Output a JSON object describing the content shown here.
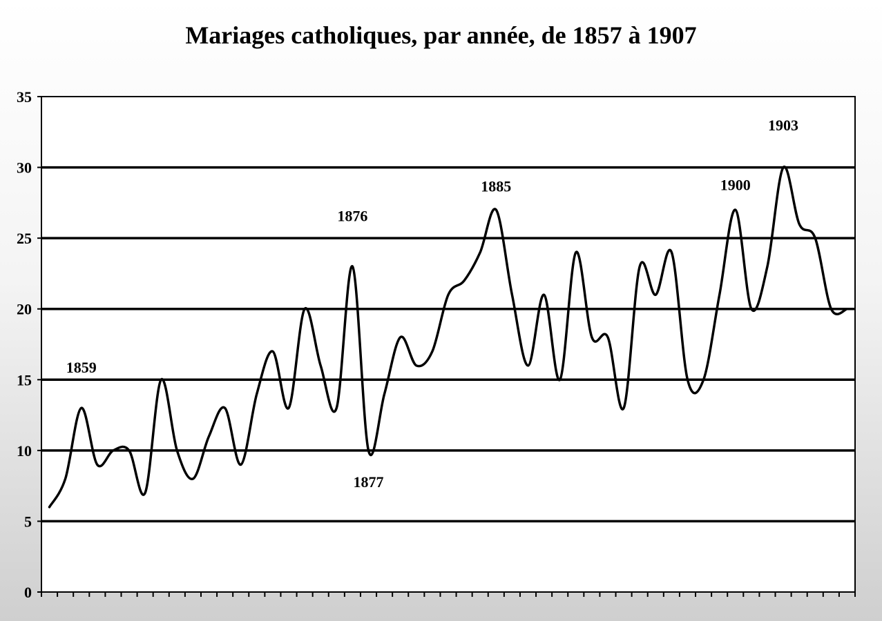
{
  "chart_data": {
    "type": "line",
    "title": "Mariages catholiques, par année, de 1857 à 1907",
    "xlabel": "",
    "ylabel": "",
    "ylim": [
      0,
      35
    ],
    "yticks": [
      0,
      5,
      10,
      15,
      20,
      25,
      30,
      35
    ],
    "grid": true,
    "legend": "none",
    "line_color": "#000000",
    "x": [
      1857,
      1858,
      1859,
      1860,
      1861,
      1862,
      1863,
      1864,
      1865,
      1866,
      1867,
      1868,
      1869,
      1870,
      1871,
      1872,
      1873,
      1874,
      1875,
      1876,
      1877,
      1878,
      1879,
      1880,
      1881,
      1882,
      1883,
      1884,
      1885,
      1886,
      1887,
      1888,
      1889,
      1890,
      1891,
      1892,
      1893,
      1894,
      1895,
      1896,
      1897,
      1898,
      1899,
      1900,
      1901,
      1902,
      1903,
      1904,
      1905,
      1906,
      1907
    ],
    "series": [
      {
        "values": [
          6,
          8,
          13,
          9,
          10,
          10,
          7,
          15,
          10,
          8,
          11,
          13,
          9,
          14,
          17,
          13,
          20,
          16,
          13,
          23,
          10,
          14,
          18,
          16,
          17,
          21,
          22,
          24,
          27,
          21,
          16,
          21,
          15,
          24,
          18,
          18,
          13,
          23,
          21,
          24,
          15,
          15,
          21,
          27,
          20,
          23,
          30,
          26,
          25,
          20,
          20
        ]
      }
    ],
    "annotations": [
      {
        "label": "1859",
        "x": 1859,
        "y": 15.5
      },
      {
        "label": "1876",
        "x": 1876,
        "y": 26.2
      },
      {
        "label": "1877",
        "x": 1877,
        "y": 7.4
      },
      {
        "label": "1885",
        "x": 1885,
        "y": 28.3
      },
      {
        "label": "1900",
        "x": 1900,
        "y": 28.4
      },
      {
        "label": "1903",
        "x": 1903,
        "y": 32.6
      }
    ]
  }
}
